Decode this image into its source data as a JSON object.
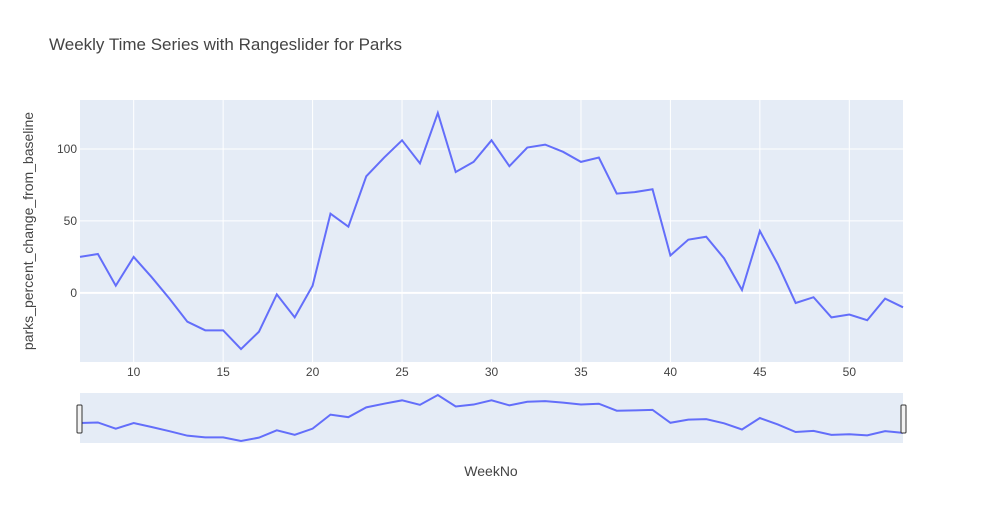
{
  "chart_data": {
    "type": "line",
    "title": "Weekly Time Series with Rangeslider for Parks",
    "xlabel": "WeekNo",
    "ylabel": "parks_percent_change_from_baseline",
    "xlim": [
      7,
      53
    ],
    "ylim": [
      -48,
      134
    ],
    "x_ticks": [
      10,
      15,
      20,
      25,
      30,
      35,
      40,
      45,
      50
    ],
    "y_ticks": [
      0,
      50,
      100
    ],
    "grid": true,
    "legend": "none",
    "rangeslider": true,
    "colors": {
      "line": "#636efa",
      "plot_bg": "#e5ecf6",
      "grid": "#ffffff",
      "text": "#444444"
    },
    "series": [
      {
        "x": [
          7,
          8,
          9,
          10,
          11,
          12,
          13,
          14,
          15,
          16,
          17,
          18,
          19,
          20,
          21,
          22,
          23,
          24,
          25,
          26,
          27,
          28,
          29,
          30,
          31,
          32,
          33,
          34,
          35,
          36,
          37,
          38,
          39,
          40,
          41,
          42,
          43,
          44,
          45,
          46,
          47,
          48,
          49,
          50,
          51,
          52,
          53
        ],
        "values": [
          25,
          27,
          5,
          25,
          11,
          -4,
          -20,
          -26,
          -26,
          -39,
          -27,
          -1,
          -17,
          5,
          55,
          46,
          81,
          94,
          106,
          90,
          125,
          84,
          91,
          106,
          88,
          101,
          103,
          98,
          91,
          94,
          69,
          70,
          72,
          26,
          37,
          39,
          24,
          2,
          43,
          20,
          -7,
          -3,
          -17,
          -15,
          -19,
          -4,
          -10
        ]
      }
    ]
  }
}
